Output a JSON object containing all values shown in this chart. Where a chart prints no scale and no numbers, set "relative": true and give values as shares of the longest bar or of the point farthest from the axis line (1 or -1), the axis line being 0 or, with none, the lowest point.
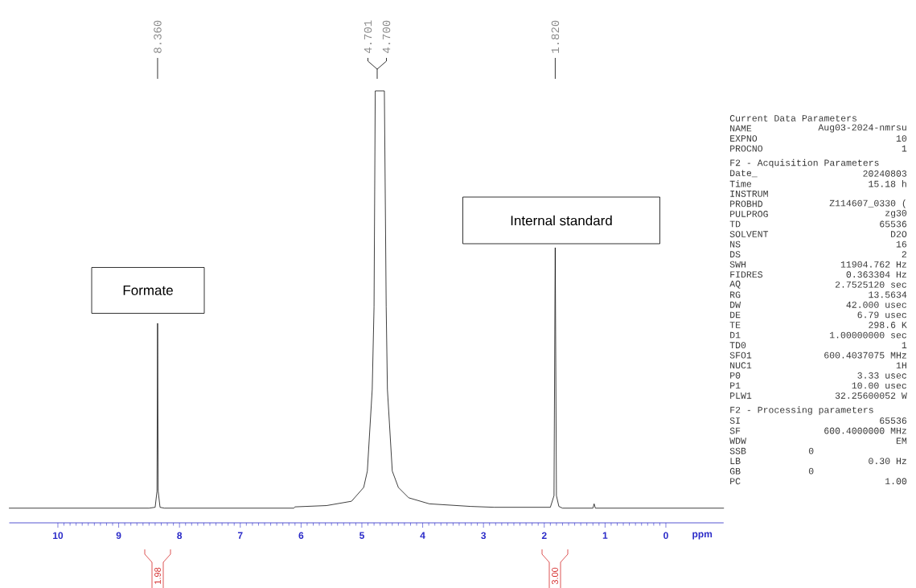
{
  "chart_data": {
    "type": "line",
    "relative": true,
    "xlabel": "ppm",
    "xlim": [
      10.8,
      -0.95
    ],
    "xticks": [
      10,
      9,
      8,
      7,
      6,
      5,
      4,
      3,
      2,
      1,
      0
    ],
    "x": [
      10.8,
      8.5,
      8.4,
      8.37,
      8.36,
      8.35,
      8.32,
      8.25,
      6.12,
      6.1,
      5.58,
      5.17,
      4.97,
      4.91,
      4.83,
      4.8,
      4.78,
      4.63,
      4.6,
      4.58,
      4.5,
      4.4,
      4.23,
      3.89,
      3.21,
      2.82,
      1.9,
      1.84,
      1.82,
      1.8,
      1.76,
      1.7,
      1.2,
      1.18,
      1.16,
      -0.95
    ],
    "series": [
      {
        "color": "#000000",
        "values": [
          0.034,
          0.034,
          0.036,
          0.073,
          0.462,
          0.073,
          0.036,
          0.034,
          0.034,
          0.037,
          0.04,
          0.05,
          0.082,
          0.12,
          0.309,
          0.5,
          1,
          1,
          0.5,
          0.309,
          0.12,
          0.082,
          0.058,
          0.044,
          0.038,
          0.036,
          0.036,
          0.063,
          0.637,
          0.063,
          0.038,
          0.034,
          0.034,
          0.044,
          0.034,
          0.034
        ]
      }
    ],
    "annotations": [
      {
        "text": "8.360",
        "x": 8.36
      },
      "4.701",
      "4.700",
      {
        "text": "1.820",
        "x": 1.82
      },
      "1.98",
      "3.00",
      "Formate",
      "Internal standard",
      "Current Data Parameters",
      "NAME",
      "Aug03-2024-nmrsu",
      "EXPNO",
      "10",
      "PROCNO",
      "1",
      "F2 - Acquisition Parameters",
      "Date_",
      "20240803",
      "Time",
      "15.18 h",
      "INSTRUM",
      "PROBHD",
      "Z114607_0330 (",
      "PULPROG",
      "zg30",
      "TD",
      "65536",
      "SOLVENT",
      "D2O",
      "NS",
      "16",
      "DS",
      "2",
      "SWH",
      "11904.762 Hz",
      "FIDRES",
      "0.363304 Hz",
      "AQ",
      "2.7525120 sec",
      "RG",
      "13.5634",
      "DW",
      "42.000 usec",
      "DE",
      "6.79 usec",
      "TE",
      "298.6 K",
      "D1",
      "1.00000000 sec",
      "TD0",
      "1",
      "SFO1",
      "600.4037075 MHz",
      "NUC1",
      "1H",
      "P0",
      "3.33 usec",
      "P1",
      "10.00 usec",
      "PLW1",
      "32.25600052 W",
      "F2 - Processing parameters",
      "SI",
      "65536",
      "SF",
      "600.4000000 MHz",
      "WDW",
      "EM",
      "SSB",
      "0",
      "LB",
      "0.30 Hz",
      "GB",
      "0",
      "PC",
      "1.00"
    ]
  }
}
